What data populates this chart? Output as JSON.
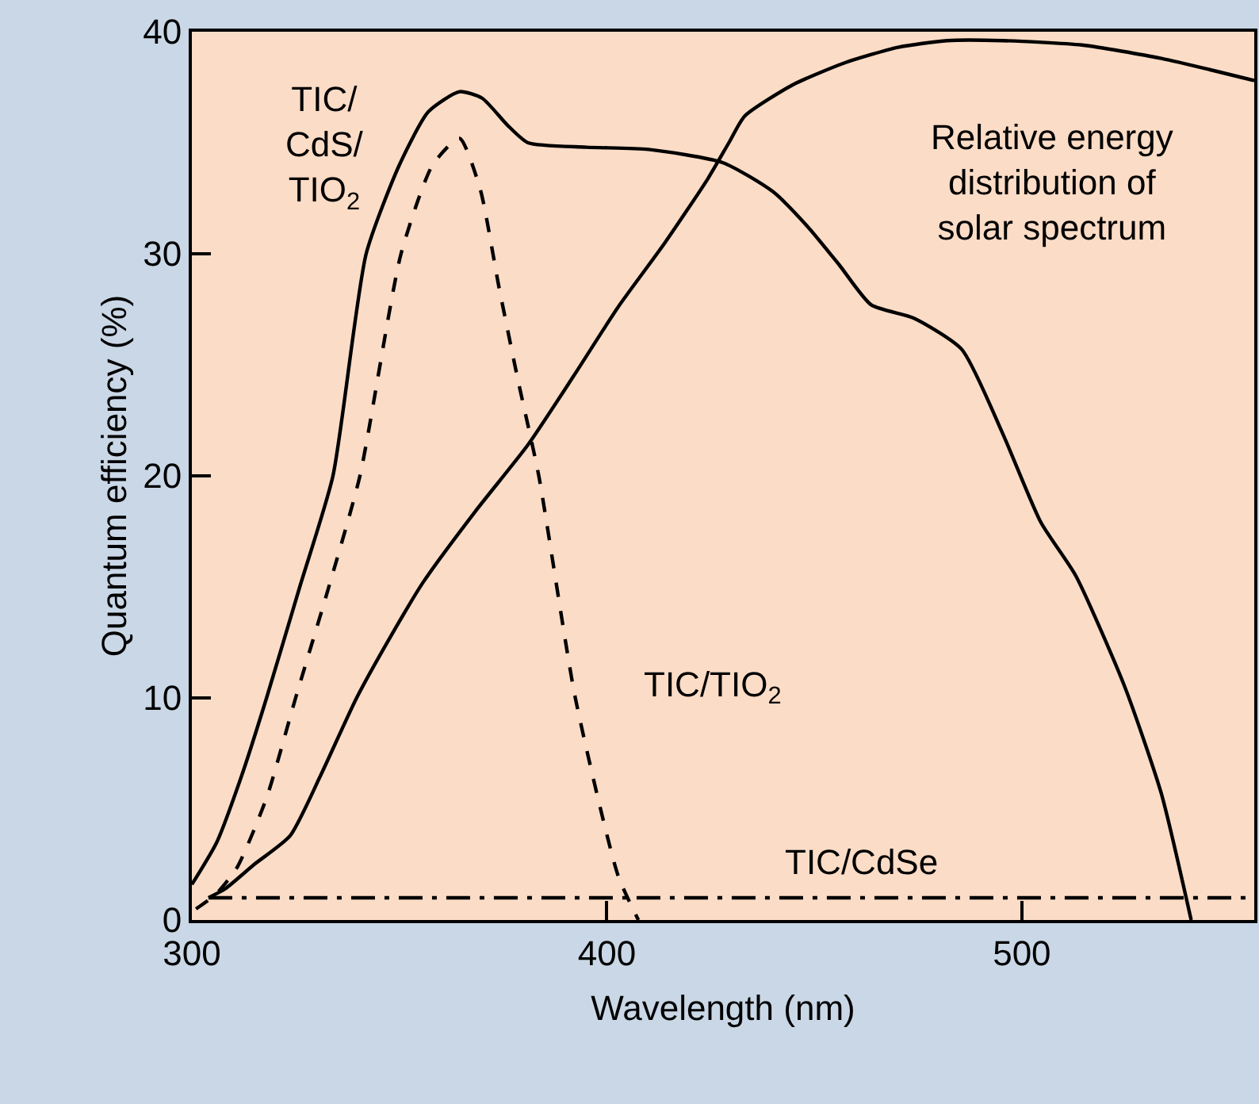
{
  "chart_data": {
    "type": "line",
    "xlabel": "Wavelength (nm)",
    "ylabel": "Quantum efficiency (%)",
    "xlim": [
      300,
      556
    ],
    "xticks": [
      300,
      400,
      500
    ],
    "ylim": [
      0,
      40
    ],
    "yticks": [
      0,
      10,
      20,
      30,
      40
    ],
    "grid": false,
    "legend": false,
    "marker": "none",
    "series": [
      {
        "name": "TIC/\nCdS/\nTIO$_{2}$",
        "color": "#000000",
        "line_style": "solid",
        "x": [
          300,
          306,
          312,
          318,
          326,
          334,
          342,
          350,
          357,
          364.5,
          370,
          376,
          381,
          395,
          410,
          428,
          440,
          448.5,
          456,
          463.7,
          474,
          485.5,
          495.4,
          504.6,
          513,
          524.8,
          533.6,
          540.8
        ],
        "values": [
          1.6,
          3.5,
          6.5,
          10,
          15,
          20,
          30,
          34,
          36.4,
          37.3,
          37,
          35.8,
          35,
          34.8,
          34.7,
          34.1,
          32.8,
          31.2,
          29.5,
          27.7,
          27.1,
          25.7,
          21.9,
          17.9,
          15.5,
          10.5,
          5.7,
          0
        ]
      },
      {
        "name": "TIC/TIO$_{2}$",
        "color": "#000000",
        "line_style": "dashed",
        "x": [
          301,
          306,
          311,
          318,
          325,
          333,
          340.5,
          350.4,
          358,
          364.5,
          369.5,
          374,
          378.6,
          383.6,
          392.4,
          402.7,
          407.6
        ],
        "values": [
          0.5,
          1.2,
          2.4,
          5.5,
          10,
          15,
          20,
          30,
          34,
          35.2,
          32.9,
          28.5,
          24.3,
          20,
          10,
          2,
          0
        ]
      },
      {
        "name": "Relative energy\ndistribution of\nsolar spectrum",
        "color": "#000000",
        "line_style": "solid",
        "x": [
          304,
          308,
          315,
          323.7,
          331,
          339.7,
          348,
          355.7,
          368.3,
          381,
          392,
          402.7,
          414,
          424.4,
          429.4,
          433.2,
          444.7,
          457.3,
          470.2,
          482,
          495.4,
          514.5,
          533.6,
          556
        ],
        "values": [
          1,
          1.4,
          2.5,
          3.8,
          6.5,
          10,
          12.8,
          15.2,
          18.4,
          21.4,
          24.5,
          27.6,
          30.5,
          33.4,
          35,
          36.2,
          37.6,
          38.6,
          39.3,
          39.6,
          39.6,
          39.4,
          38.8,
          37.8
        ]
      },
      {
        "name": "TIC/CdSe",
        "color": "#000000",
        "line_style": "dashdot",
        "x": [
          304,
          556
        ],
        "values": [
          1,
          1
        ]
      }
    ]
  }
}
